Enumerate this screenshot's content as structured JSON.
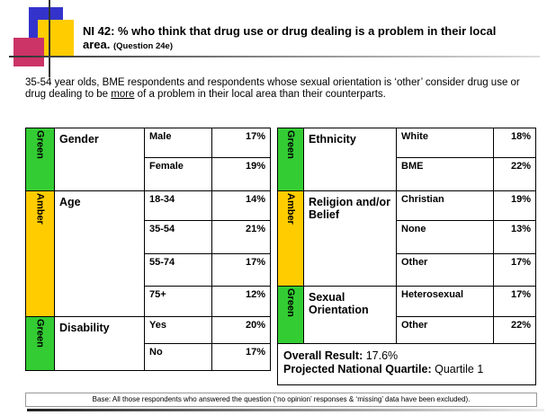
{
  "title": "NI 42: % who think that drug use or drug dealing is a problem in their local area.",
  "title_note": "(Question 24e)",
  "intro": {
    "before": "35-54 year olds, BME respondents and respondents whose sexual orientation is ‘other’ consider drug use or drug dealing to be ",
    "emphasis": "more",
    "after": " of a problem in their local area than their counterparts."
  },
  "left_table": {
    "sections": [
      {
        "rating": "Green",
        "label": "Gender",
        "rows": [
          [
            "Male",
            "17%"
          ],
          [
            "Female",
            "19%"
          ]
        ]
      },
      {
        "rating": "Amber",
        "label": "Age",
        "rows": [
          [
            "18-34",
            "14%"
          ],
          [
            "35-54",
            "21%"
          ],
          [
            "55-74",
            "17%"
          ],
          [
            "75+",
            "12%"
          ]
        ]
      },
      {
        "rating": "Green",
        "label": "Disability",
        "rows": [
          [
            "Yes",
            "20%"
          ],
          [
            "No",
            "17%"
          ]
        ]
      }
    ]
  },
  "right_table": {
    "sections": [
      {
        "rating": "Green",
        "label": "Ethnicity",
        "rows": [
          [
            "White",
            "18%"
          ],
          [
            "BME",
            "22%"
          ]
        ]
      },
      {
        "rating": "Amber",
        "label": "Religion and/or Belief",
        "rows": [
          [
            "Christian",
            "19%"
          ],
          [
            "None",
            "13%"
          ],
          [
            "Other",
            "17%"
          ]
        ]
      },
      {
        "rating": "Green",
        "label": "Sexual Orientation",
        "rows": [
          [
            "Heterosexual",
            "17%"
          ],
          [
            "Other",
            "22%"
          ]
        ]
      }
    ],
    "overall": {
      "result_label": "Overall Result:",
      "result_value": "17.6%",
      "quartile_label": "Projected National Quartile:",
      "quartile_value": "Quartile 1"
    }
  },
  "base": "Base: All those respondents who answered the question (‘no opinion’ responses & ‘missing’ data have been excluded)."
}
